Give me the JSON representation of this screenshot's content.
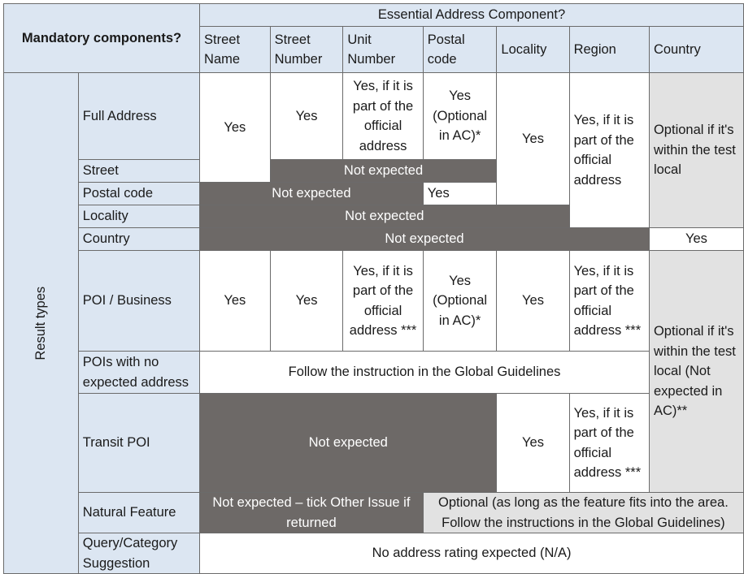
{
  "header": {
    "mandatory": "Mandatory components?",
    "essential": "Essential Address Component?",
    "columns": [
      "Street Name",
      "Street Number",
      "Unit Number",
      "Postal code",
      "Locality",
      "Region",
      "Country"
    ]
  },
  "result_types_label": "Result types",
  "rows": {
    "full_address": {
      "label": "Full Address",
      "street_name": "Yes",
      "street_number": "Yes",
      "unit_number": "Yes, if it is part of the official address",
      "postal_code": "Yes (Optional in AC)*",
      "locality": "Yes",
      "region": "Yes, if it is part of the official address",
      "country": "Optional if it's within the test local"
    },
    "street": {
      "label": "Street",
      "not_expected": "Not expected"
    },
    "postal_code": {
      "label": "Postal code",
      "not_expected": "Not expected",
      "postal_value": "Yes"
    },
    "locality": {
      "label": "Locality",
      "not_expected": "Not expected"
    },
    "country": {
      "label": "Country",
      "not_expected": "Not expected",
      "country_value": "Yes"
    },
    "poi_business": {
      "label": "POI / Business",
      "street_name": "Yes",
      "street_number": "Yes",
      "unit_number": "Yes, if it is part of the official address ***",
      "postal_code": "Yes (Optional in AC)*",
      "locality": "Yes",
      "region": "Yes, if it is part of the official address ***",
      "country": "Optional if it's within the test local (Not expected in AC)**"
    },
    "pois_no_address": {
      "label": "POIs with no expected address",
      "instruction": "Follow the instruction in the Global Guidelines"
    },
    "transit_poi": {
      "label": "Transit POI",
      "not_expected": "Not expected",
      "locality": "Yes",
      "region": "Yes, if it is part of the official address ***"
    },
    "natural_feature": {
      "label": "Natural Feature",
      "not_expected": "Not expected – tick Other Issue if returned",
      "optional": "Optional (as long as the feature fits into the area. Follow the instructions in the Global Guidelines)"
    },
    "query_suggestion": {
      "label": "Query/Category Suggestion",
      "value": "No address rating expected (N/A)"
    }
  },
  "colors": {
    "header_blue": "#dce6f2",
    "not_expected_grey": "#6d6967",
    "optional_light_grey": "#e2e2e2"
  }
}
